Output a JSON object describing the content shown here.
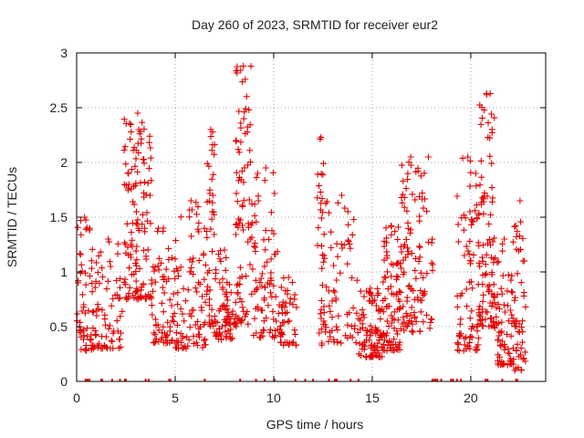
{
  "chart_data": {
    "type": "scatter",
    "title": "Day 260 of 2023, SRMTID for receiver eur2",
    "xlabel": "GPS time / hours",
    "ylabel": "SRMTID / TECUs",
    "xlim": [
      0,
      23.8
    ],
    "ylim": [
      0,
      3
    ],
    "xticks": [
      "0",
      "5",
      "10",
      "15",
      "20"
    ],
    "xtick_values": [
      0,
      5,
      10,
      15,
      20
    ],
    "yticks": [
      "0",
      "0.5",
      "1",
      "1.5",
      "2",
      "2.5",
      "3"
    ],
    "ytick_values": [
      0,
      0.5,
      1,
      1.5,
      2,
      2.5,
      3
    ],
    "grid": true,
    "marker": "plus",
    "color": "#e60000",
    "series": [
      {
        "name": "SRMTID",
        "clusters": [
          {
            "t0": 0.0,
            "t1": 0.8,
            "min": 0.28,
            "peak": 1.5,
            "n": 55
          },
          {
            "t0": 0.8,
            "t1": 2.4,
            "min": 0.3,
            "peak": 1.3,
            "n": 70
          },
          {
            "t0": 2.4,
            "t1": 3.8,
            "min": 0.75,
            "peak": 2.45,
            "n": 130
          },
          {
            "t0": 3.8,
            "t1": 5.0,
            "min": 0.35,
            "peak": 1.4,
            "n": 70
          },
          {
            "t0": 5.0,
            "t1": 6.6,
            "min": 0.3,
            "peak": 1.65,
            "n": 90
          },
          {
            "t0": 6.6,
            "t1": 7.0,
            "min": 0.5,
            "peak": 2.3,
            "n": 40
          },
          {
            "t0": 7.0,
            "t1": 8.0,
            "min": 0.38,
            "peak": 1.2,
            "n": 70
          },
          {
            "t0": 8.0,
            "t1": 8.9,
            "min": 0.5,
            "peak": 2.88,
            "n": 90
          },
          {
            "t0": 8.9,
            "t1": 10.3,
            "min": 0.4,
            "peak": 1.95,
            "n": 80
          },
          {
            "t0": 10.3,
            "t1": 11.2,
            "min": 0.33,
            "peak": 0.95,
            "n": 45
          },
          {
            "t0": 12.2,
            "t1": 12.6,
            "min": 0.32,
            "peak": 2.23,
            "n": 35
          },
          {
            "t0": 12.6,
            "t1": 14.3,
            "min": 0.35,
            "peak": 1.7,
            "n": 65
          },
          {
            "t0": 14.3,
            "t1": 15.5,
            "min": 0.22,
            "peak": 0.85,
            "n": 90
          },
          {
            "t0": 15.5,
            "t1": 16.4,
            "min": 0.28,
            "peak": 1.42,
            "n": 85
          },
          {
            "t0": 16.4,
            "t1": 17.5,
            "min": 0.45,
            "peak": 2.05,
            "n": 90
          },
          {
            "t0": 17.5,
            "t1": 18.2,
            "min": 0.45,
            "peak": 2.05,
            "n": 25
          },
          {
            "t0": 19.3,
            "t1": 20.4,
            "min": 0.28,
            "peak": 2.05,
            "n": 80
          },
          {
            "t0": 20.4,
            "t1": 21.2,
            "min": 0.5,
            "peak": 2.63,
            "n": 95
          },
          {
            "t0": 21.2,
            "t1": 22.2,
            "min": 0.15,
            "peak": 1.3,
            "n": 75
          },
          {
            "t0": 22.2,
            "t1": 22.8,
            "min": 0.1,
            "peak": 1.65,
            "n": 45
          }
        ],
        "zero_values_at_hours": [
          0.45,
          0.55,
          0.65,
          1.25,
          1.3,
          1.8,
          2.2,
          2.45,
          2.5,
          3.5,
          3.65,
          4.7,
          4.75,
          6.5,
          8.3,
          9.1,
          9.55,
          10.05,
          11.1,
          11.6,
          12.0,
          12.8,
          13.1,
          13.2,
          13.9,
          14.3,
          18.05,
          18.1,
          18.2,
          18.3,
          18.5,
          19.0,
          19.1,
          19.3,
          19.5,
          20.75,
          20.85,
          21.6,
          22.3,
          22.35
        ]
      }
    ]
  }
}
